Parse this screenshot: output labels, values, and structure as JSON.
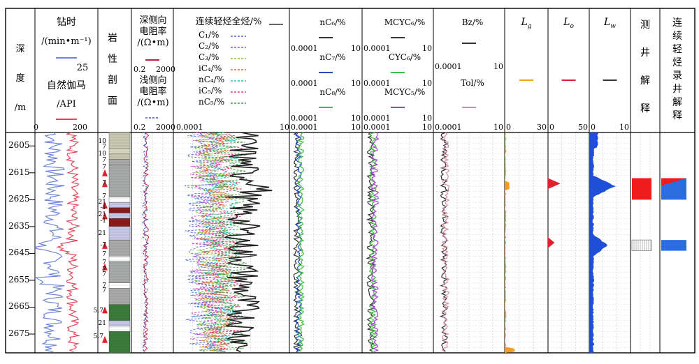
{
  "chart_data": {
    "type": "line",
    "title": "",
    "depth_axis": {
      "label_chars": [
        "深",
        "度",
        "/m"
      ],
      "ticks": [
        2605,
        2615,
        2625,
        2635,
        2645,
        2655,
        2665,
        2675
      ],
      "range": [
        2600,
        2682
      ]
    },
    "tracks": [
      {
        "id": "drill",
        "title": "钻时",
        "unit": "/(min·m⁻¹)",
        "scale": [
          0,
          25
        ],
        "color": "#6f86d6",
        "curve2": {
          "title": "自然伽马",
          "unit": "/API",
          "scale": [
            0,
            200
          ],
          "color": "#e0475a"
        }
      },
      {
        "id": "lith",
        "title_chars": [
          "岩",
          "性",
          "剖",
          "面"
        ]
      },
      {
        "id": "resist",
        "title": "深侧向电阻率/(Ω·m)",
        "scale": [
          0.2,
          2000
        ],
        "color": "#c0203a",
        "curve2": {
          "title": "浅侧向电阻率/(Ω·m)",
          "scale": [
            0.2,
            2000
          ],
          "color": "#3b56c8"
        }
      },
      {
        "id": "gas",
        "title": "连续轻烃全烃/%",
        "scale": [
          0.0001,
          10
        ],
        "legend": [
          {
            "name": "C₁/%",
            "color": "#4b6bd6"
          },
          {
            "name": "C₂/%",
            "color": "#c040c0"
          },
          {
            "name": "C₃/%",
            "color": "#80c040"
          },
          {
            "name": "iC₄/%",
            "color": "#e07020"
          },
          {
            "name": "nC₄/%",
            "color": "#30c0c0"
          },
          {
            "name": "iC₅/%",
            "color": "#e04080"
          },
          {
            "name": "nC₅/%",
            "color": "#40a040"
          }
        ]
      },
      {
        "id": "nc6",
        "curves": [
          "nC₆/%",
          "nC₇/%",
          "nC₈/%"
        ],
        "colors": [
          "#333333",
          "#2050c0",
          "#40c040"
        ],
        "scale": [
          0.0001,
          10
        ]
      },
      {
        "id": "mcyc",
        "curves": [
          "MCYC₆/%",
          "CYC₆/%",
          "MCYC₅/%"
        ],
        "colors": [
          "#333333",
          "#40c040",
          "#a040d0"
        ],
        "scale": [
          0.0001,
          10
        ]
      },
      {
        "id": "bz",
        "curves": [
          "Bz/%",
          "Tol/%"
        ],
        "colors": [
          "#333333",
          "#d090a0"
        ],
        "scale": [
          0.0001,
          10
        ]
      },
      {
        "id": "lg",
        "title": "Lg",
        "scale": [
          0,
          30
        ],
        "color": "#f0a020"
      },
      {
        "id": "lo",
        "title": "Lo",
        "scale": [
          0,
          50
        ],
        "color": "#e02030"
      },
      {
        "id": "lw",
        "title": "Lw",
        "scale": [
          0,
          10
        ],
        "color": "#1f4fd8"
      },
      {
        "id": "log_interp",
        "title_chars": [
          "测",
          "井",
          "解",
          "释"
        ]
      },
      {
        "id": "mud_interp",
        "title_chars": [
          "连",
          "续",
          "轻",
          "烃",
          "录",
          "井",
          "解",
          "释"
        ]
      }
    ],
    "lithology_labels": [
      {
        "depth": 2603.5,
        "text": "10"
      },
      {
        "depth": 2605.5,
        "text": "7"
      },
      {
        "depth": 2608,
        "text": "10"
      },
      {
        "depth": 2610.5,
        "text": "7"
      },
      {
        "depth": 2613,
        "text": "7"
      },
      {
        "depth": 2619,
        "text": "7"
      },
      {
        "depth": 2624,
        "text": "7"
      },
      {
        "depth": 2626,
        "text": "21"
      },
      {
        "depth": 2628,
        "text": "-1"
      },
      {
        "depth": 2630.5,
        "text": "21"
      },
      {
        "depth": 2633,
        "text": "-1"
      },
      {
        "depth": 2637.5,
        "text": "21"
      },
      {
        "depth": 2642,
        "text": "-7"
      },
      {
        "depth": 2645.5,
        "text": "7"
      },
      {
        "depth": 2648.5,
        "text": "7"
      },
      {
        "depth": 2651,
        "text": "7"
      },
      {
        "depth": 2653,
        "text": "7"
      },
      {
        "depth": 2657,
        "text": "7"
      },
      {
        "depth": 2659,
        "text": "7"
      },
      {
        "depth": 2666.5,
        "text": "5.7"
      },
      {
        "depth": 2671,
        "text": "21"
      },
      {
        "depth": 2676,
        "text": "5.7"
      }
    ],
    "lw_peaks": [
      {
        "depth": 2620,
        "value": 5.3
      },
      {
        "depth": 2642,
        "value": 3.5
      }
    ],
    "lo_peaks": [
      {
        "depth": 2619,
        "value": 15
      },
      {
        "depth": 2641,
        "value": 8
      }
    ],
    "interpretation": {
      "log": [
        {
          "top": 2617,
          "bottom": 2625,
          "type": "oil",
          "color": "#ee1c1c"
        },
        {
          "top": 2640,
          "bottom": 2644,
          "type": "hatched",
          "color": "#888888"
        }
      ],
      "mud": [
        {
          "top": 2617,
          "bottom": 2625,
          "type": "oil-water",
          "color": "#2b6de0"
        },
        {
          "top": 2640,
          "bottom": 2644,
          "type": "water",
          "color": "#2b6de0"
        }
      ]
    }
  },
  "headers": {
    "depth": [
      "深",
      "度",
      "/m"
    ],
    "drill_title": "钻时",
    "drill_unit": "/(min•m⁻¹)",
    "drill_scale": [
      "25"
    ],
    "gr_title": "自然伽马",
    "gr_unit": "/API",
    "gr_scale": [
      "0",
      "200"
    ],
    "lith": [
      "岩",
      "性",
      "剖",
      "面"
    ],
    "deep_res": [
      "深侧向",
      "电阻率",
      "/(Ω•m)"
    ],
    "deep_scale": [
      "0.2",
      "2000"
    ],
    "shallow_res": [
      "浅侧向",
      "电阻率",
      "/(Ω•m)"
    ],
    "shallow_scale": [
      "0.2",
      "2000"
    ],
    "gas_title": "连续轻烃全烃/%",
    "gas_scale": [
      "0.0001",
      "10"
    ],
    "gas_legend": [
      "C₁/%",
      "C₂/%",
      "C₃/%",
      "iC₄/%",
      "nC₄/%",
      "iC₅/%",
      "nC₅/%"
    ],
    "nc": [
      "nC₆/%",
      "nC₇/%",
      "nC₈/%"
    ],
    "mc": [
      "MCYC₆/%",
      "CYC₆/%",
      "MCYC₅/%"
    ],
    "bz": [
      "Bz/%",
      "Tol/%"
    ],
    "s0001": "0.0001",
    "s10": "10",
    "lg": "L",
    "lg_sub": "g",
    "lo": "L",
    "lo_sub": "o",
    "lw": "L",
    "lw_sub": "w",
    "lg_scale": [
      "0",
      "30"
    ],
    "lo_scale": [
      "0",
      "50"
    ],
    "lw_scale": [
      "0",
      "10"
    ],
    "log_interp": [
      "测",
      "井",
      "解",
      "释"
    ],
    "mud_interp": [
      "连",
      "续",
      "轻",
      "烃",
      "录",
      "井",
      "解",
      "释"
    ]
  }
}
